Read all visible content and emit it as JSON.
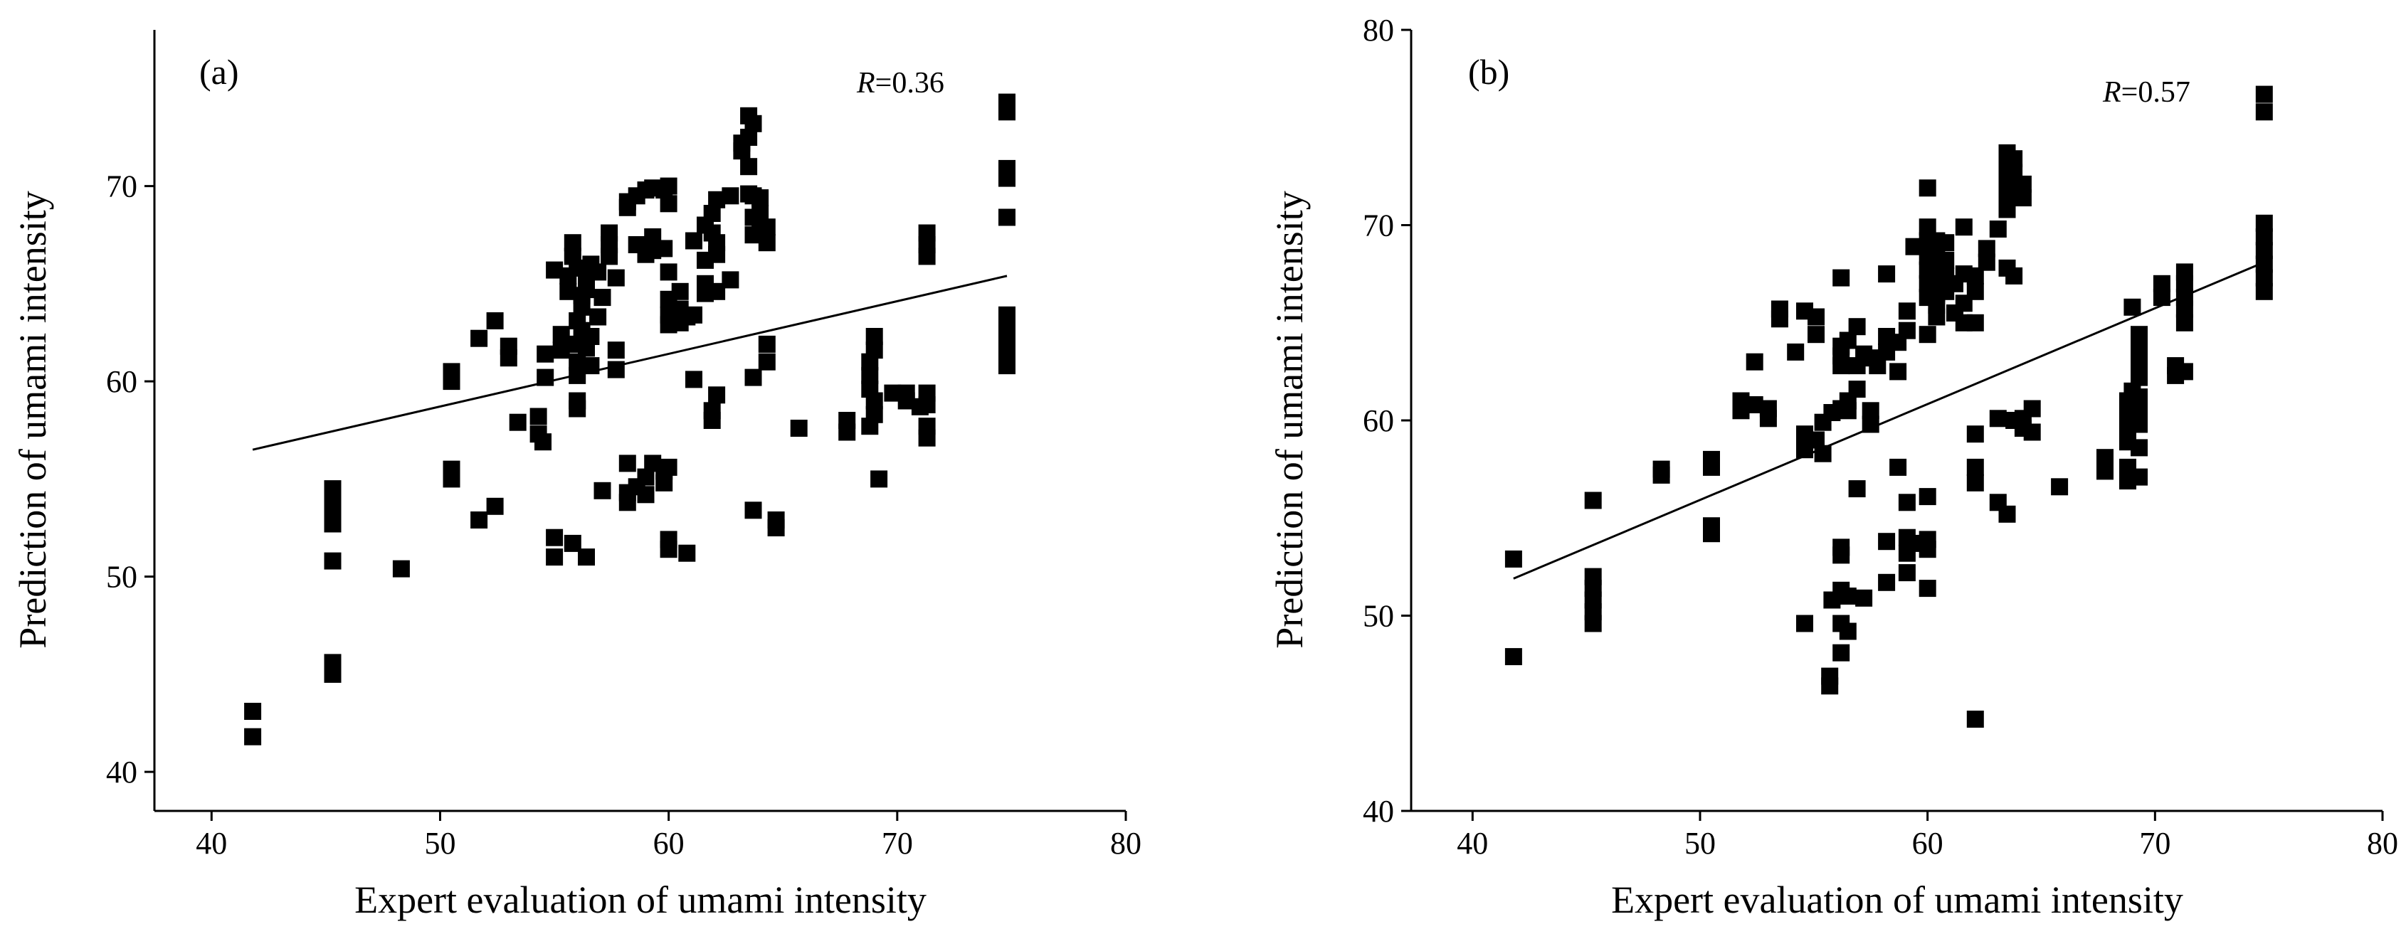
{
  "chart_data": [
    {
      "type": "scatter",
      "panel_label": "(a)",
      "annotation": {
        "symbol": "R",
        "text": "=0.36"
      },
      "xlabel": "Expert evaluation of umami intensity",
      "ylabel": "Prediction of umami intensity",
      "xlim": [
        37.5,
        80
      ],
      "ylim": [
        38,
        78
      ],
      "xticks": [
        40,
        50,
        60,
        70,
        80
      ],
      "yticks": [
        40,
        50,
        60,
        70
      ],
      "fit_line": {
        "x": [
          41.8,
          74.8
        ],
        "y": [
          56.5,
          65.4
        ]
      },
      "points": [
        [
          41.8,
          43.1
        ],
        [
          41.8,
          41.8
        ],
        [
          45.3,
          54.5
        ],
        [
          45.3,
          53.9
        ],
        [
          45.3,
          53.3
        ],
        [
          45.3,
          52.7
        ],
        [
          45.3,
          50.8
        ],
        [
          45.3,
          45.6
        ],
        [
          45.3,
          45.0
        ],
        [
          48.3,
          50.4
        ],
        [
          50.5,
          60.5
        ],
        [
          50.5,
          60.0
        ],
        [
          50.5,
          55.5
        ],
        [
          50.5,
          55.0
        ],
        [
          51.7,
          62.2
        ],
        [
          51.7,
          52.9
        ],
        [
          52.4,
          63.1
        ],
        [
          52.4,
          53.6
        ],
        [
          53.0,
          61.8
        ],
        [
          53.0,
          61.2
        ],
        [
          53.4,
          57.9
        ],
        [
          54.3,
          58.2
        ],
        [
          54.3,
          57.3
        ],
        [
          54.5,
          56.9
        ],
        [
          54.6,
          61.4
        ],
        [
          54.6,
          60.2
        ],
        [
          55.0,
          65.7
        ],
        [
          55.0,
          52.0
        ],
        [
          55.0,
          51.0
        ],
        [
          55.3,
          62.4
        ],
        [
          55.3,
          61.6
        ],
        [
          55.6,
          65.4
        ],
        [
          55.6,
          64.6
        ],
        [
          55.8,
          67.1
        ],
        [
          55.8,
          66.4
        ],
        [
          55.8,
          51.7
        ],
        [
          56.0,
          65.8
        ],
        [
          56.0,
          63.1
        ],
        [
          56.0,
          61.9
        ],
        [
          56.0,
          61.0
        ],
        [
          56.0,
          60.3
        ],
        [
          56.0,
          59.0
        ],
        [
          56.0,
          58.6
        ],
        [
          56.2,
          64.4
        ],
        [
          56.2,
          63.8
        ],
        [
          56.2,
          62.6
        ],
        [
          56.4,
          65.4
        ],
        [
          56.4,
          64.7
        ],
        [
          56.4,
          61.7
        ],
        [
          56.4,
          51.0
        ],
        [
          56.6,
          66.0
        ],
        [
          56.6,
          62.3
        ],
        [
          56.6,
          60.8
        ],
        [
          56.9,
          65.6
        ],
        [
          56.9,
          63.3
        ],
        [
          57.1,
          64.3
        ],
        [
          57.1,
          54.4
        ],
        [
          57.4,
          67.6
        ],
        [
          57.4,
          67.0
        ],
        [
          57.4,
          66.4
        ],
        [
          57.7,
          65.3
        ],
        [
          57.7,
          61.6
        ],
        [
          57.7,
          60.6
        ],
        [
          58.2,
          69.2
        ],
        [
          58.2,
          68.9
        ],
        [
          58.2,
          55.8
        ],
        [
          58.2,
          54.3
        ],
        [
          58.2,
          53.8
        ],
        [
          58.6,
          69.5
        ],
        [
          58.6,
          67.0
        ],
        [
          58.6,
          54.6
        ],
        [
          59.0,
          69.8
        ],
        [
          59.0,
          66.5
        ],
        [
          59.0,
          55.1
        ],
        [
          59.0,
          54.2
        ],
        [
          59.3,
          69.9
        ],
        [
          59.3,
          67.4
        ],
        [
          59.3,
          66.7
        ],
        [
          59.3,
          55.8
        ],
        [
          59.8,
          69.8
        ],
        [
          59.8,
          66.8
        ],
        [
          59.8,
          55.4
        ],
        [
          59.8,
          54.8
        ],
        [
          60.0,
          70.0
        ],
        [
          60.0,
          69.1
        ],
        [
          60.0,
          65.6
        ],
        [
          60.0,
          64.2
        ],
        [
          60.0,
          63.4
        ],
        [
          60.0,
          62.9
        ],
        [
          60.0,
          55.6
        ],
        [
          60.0,
          51.9
        ],
        [
          60.0,
          51.4
        ],
        [
          60.5,
          64.6
        ],
        [
          60.5,
          63.7
        ],
        [
          60.5,
          63.0
        ],
        [
          60.8,
          63.3
        ],
        [
          60.8,
          51.2
        ],
        [
          61.1,
          67.2
        ],
        [
          61.1,
          63.4
        ],
        [
          61.1,
          60.1
        ],
        [
          61.6,
          68.0
        ],
        [
          61.6,
          66.2
        ],
        [
          61.6,
          65.0
        ],
        [
          61.6,
          64.5
        ],
        [
          61.9,
          68.6
        ],
        [
          61.9,
          67.6
        ],
        [
          61.9,
          58.5
        ],
        [
          61.9,
          58.0
        ],
        [
          62.1,
          69.3
        ],
        [
          62.1,
          67.1
        ],
        [
          62.1,
          66.5
        ],
        [
          62.1,
          64.6
        ],
        [
          62.1,
          59.3
        ],
        [
          62.7,
          69.5
        ],
        [
          62.7,
          65.2
        ],
        [
          63.2,
          72.2
        ],
        [
          63.2,
          71.8
        ],
        [
          63.5,
          73.6
        ],
        [
          63.5,
          72.5
        ],
        [
          63.5,
          71.0
        ],
        [
          63.5,
          69.6
        ],
        [
          63.7,
          73.2
        ],
        [
          63.7,
          69.5
        ],
        [
          63.7,
          68.4
        ],
        [
          63.7,
          67.5
        ],
        [
          63.7,
          60.2
        ],
        [
          63.7,
          53.4
        ],
        [
          64.0,
          68.6
        ],
        [
          64.0,
          67.6
        ],
        [
          64.0,
          69.4
        ],
        [
          64.3,
          67.9
        ],
        [
          64.3,
          67.1
        ],
        [
          64.3,
          61.9
        ],
        [
          64.3,
          61.0
        ],
        [
          64.7,
          52.9
        ],
        [
          64.7,
          52.5
        ],
        [
          65.7,
          57.6
        ],
        [
          67.8,
          58.0
        ],
        [
          67.8,
          57.4
        ],
        [
          68.8,
          61.0
        ],
        [
          68.8,
          60.3
        ],
        [
          68.8,
          59.6
        ],
        [
          68.8,
          57.7
        ],
        [
          69.0,
          62.3
        ],
        [
          69.0,
          61.6
        ],
        [
          69.0,
          59.0
        ],
        [
          69.0,
          58.3
        ],
        [
          69.2,
          55.0
        ],
        [
          69.8,
          59.4
        ],
        [
          70.4,
          59.4
        ],
        [
          70.4,
          59.0
        ],
        [
          71.0,
          58.7
        ],
        [
          71.3,
          67.6
        ],
        [
          71.3,
          67.0
        ],
        [
          71.3,
          66.4
        ],
        [
          71.3,
          59.4
        ],
        [
          71.3,
          58.8
        ],
        [
          71.3,
          57.7
        ],
        [
          71.3,
          57.1
        ],
        [
          74.8,
          74.3
        ],
        [
          74.8,
          73.8
        ],
        [
          74.8,
          70.9
        ],
        [
          74.8,
          70.4
        ],
        [
          74.8,
          68.4
        ],
        [
          74.8,
          63.4
        ],
        [
          74.8,
          62.7
        ],
        [
          74.8,
          62.1
        ],
        [
          74.8,
          61.4
        ],
        [
          74.8,
          60.8
        ]
      ]
    },
    {
      "type": "scatter",
      "panel_label": "(b)",
      "annotation": {
        "symbol": "R",
        "text": "=0.57"
      },
      "xlabel": "Expert evaluation of umami intensity",
      "ylabel": "Prediction of umami intensity",
      "xlim": [
        37.3,
        80
      ],
      "ylim": [
        40,
        80
      ],
      "xticks": [
        40,
        50,
        60,
        70,
        80
      ],
      "yticks": [
        40,
        50,
        60,
        70,
        80
      ],
      "fit_line": {
        "x": [
          41.8,
          74.8
        ],
        "y": [
          51.9,
          68.1
        ]
      },
      "points": [
        [
          41.8,
          52.9
        ],
        [
          41.8,
          47.9
        ],
        [
          45.3,
          55.9
        ],
        [
          45.3,
          52.0
        ],
        [
          45.3,
          51.4
        ],
        [
          45.3,
          50.8
        ],
        [
          45.3,
          50.2
        ],
        [
          45.3,
          49.6
        ],
        [
          48.3,
          57.5
        ],
        [
          48.3,
          57.2
        ],
        [
          50.5,
          58.0
        ],
        [
          50.5,
          57.6
        ],
        [
          50.5,
          54.6
        ],
        [
          50.5,
          54.2
        ],
        [
          51.8,
          61.0
        ],
        [
          51.8,
          60.5
        ],
        [
          52.4,
          63.0
        ],
        [
          52.4,
          60.8
        ],
        [
          53.0,
          60.6
        ],
        [
          53.0,
          60.1
        ],
        [
          53.5,
          65.7
        ],
        [
          53.5,
          65.2
        ],
        [
          54.2,
          63.5
        ],
        [
          54.6,
          65.6
        ],
        [
          54.6,
          59.3
        ],
        [
          54.6,
          58.5
        ],
        [
          54.6,
          49.6
        ],
        [
          55.1,
          65.3
        ],
        [
          55.1,
          64.4
        ],
        [
          55.1,
          59.0
        ],
        [
          55.4,
          59.9
        ],
        [
          55.4,
          58.3
        ],
        [
          55.7,
          46.9
        ],
        [
          55.7,
          46.4
        ],
        [
          55.8,
          60.4
        ],
        [
          55.8,
          50.8
        ],
        [
          56.2,
          67.3
        ],
        [
          56.2,
          63.8
        ],
        [
          56.2,
          63.3
        ],
        [
          56.2,
          62.8
        ],
        [
          56.2,
          60.6
        ],
        [
          56.2,
          53.5
        ],
        [
          56.2,
          53.1
        ],
        [
          56.2,
          51.3
        ],
        [
          56.2,
          49.6
        ],
        [
          56.2,
          48.1
        ],
        [
          56.5,
          64.1
        ],
        [
          56.5,
          61.0
        ],
        [
          56.5,
          60.5
        ],
        [
          56.5,
          51.0
        ],
        [
          56.5,
          49.2
        ],
        [
          56.9,
          64.8
        ],
        [
          56.9,
          62.8
        ],
        [
          56.9,
          61.6
        ],
        [
          56.9,
          56.5
        ],
        [
          57.2,
          63.4
        ],
        [
          57.2,
          50.9
        ],
        [
          57.5,
          63.2
        ],
        [
          57.5,
          60.5
        ],
        [
          57.5,
          59.8
        ],
        [
          57.8,
          62.8
        ],
        [
          58.2,
          67.5
        ],
        [
          58.2,
          64.3
        ],
        [
          58.2,
          63.5
        ],
        [
          58.2,
          53.8
        ],
        [
          58.2,
          51.7
        ],
        [
          58.7,
          64.0
        ],
        [
          58.7,
          62.5
        ],
        [
          58.7,
          57.6
        ],
        [
          59.1,
          65.6
        ],
        [
          59.1,
          64.6
        ],
        [
          59.1,
          55.8
        ],
        [
          59.1,
          54.0
        ],
        [
          59.1,
          53.2
        ],
        [
          59.1,
          52.2
        ],
        [
          59.4,
          68.9
        ],
        [
          59.4,
          53.7
        ],
        [
          60.0,
          71.9
        ],
        [
          60.0,
          69.9
        ],
        [
          60.0,
          69.2
        ],
        [
          60.0,
          68.4
        ],
        [
          60.0,
          67.7
        ],
        [
          60.0,
          67.0
        ],
        [
          60.0,
          66.3
        ],
        [
          60.0,
          64.4
        ],
        [
          60.0,
          56.1
        ],
        [
          60.0,
          53.9
        ],
        [
          60.0,
          53.4
        ],
        [
          60.0,
          51.4
        ],
        [
          60.4,
          69.2
        ],
        [
          60.4,
          68.5
        ],
        [
          60.4,
          67.8
        ],
        [
          60.4,
          67.2
        ],
        [
          60.4,
          66.5
        ],
        [
          60.4,
          65.9
        ],
        [
          60.4,
          65.3
        ],
        [
          60.8,
          69.1
        ],
        [
          60.8,
          68.2
        ],
        [
          60.8,
          67.4
        ],
        [
          60.8,
          66.6
        ],
        [
          61.2,
          67.0
        ],
        [
          61.2,
          65.5
        ],
        [
          61.6,
          69.9
        ],
        [
          61.6,
          67.5
        ],
        [
          61.6,
          66.0
        ],
        [
          61.6,
          65.0
        ],
        [
          62.1,
          67.4
        ],
        [
          62.1,
          66.6
        ],
        [
          62.1,
          65.0
        ],
        [
          62.1,
          59.3
        ],
        [
          62.1,
          57.6
        ],
        [
          62.1,
          56.8
        ],
        [
          62.1,
          44.7
        ],
        [
          62.6,
          68.8
        ],
        [
          62.6,
          68.1
        ],
        [
          63.1,
          69.8
        ],
        [
          63.1,
          60.1
        ],
        [
          63.1,
          55.8
        ],
        [
          63.5,
          73.7
        ],
        [
          63.5,
          73.1
        ],
        [
          63.5,
          72.6
        ],
        [
          63.5,
          72.0
        ],
        [
          63.5,
          71.4
        ],
        [
          63.5,
          70.8
        ],
        [
          63.5,
          67.8
        ],
        [
          63.5,
          55.2
        ],
        [
          63.8,
          73.4
        ],
        [
          63.8,
          72.7
        ],
        [
          63.8,
          71.9
        ],
        [
          63.8,
          67.4
        ],
        [
          63.8,
          60.0
        ],
        [
          64.2,
          72.1
        ],
        [
          64.2,
          71.4
        ],
        [
          64.2,
          60.1
        ],
        [
          64.2,
          59.6
        ],
        [
          64.6,
          60.6
        ],
        [
          64.6,
          59.4
        ],
        [
          65.8,
          56.6
        ],
        [
          67.8,
          58.1
        ],
        [
          67.8,
          57.4
        ],
        [
          68.8,
          61.0
        ],
        [
          68.8,
          60.3
        ],
        [
          68.8,
          59.6
        ],
        [
          68.8,
          58.9
        ],
        [
          68.8,
          57.6
        ],
        [
          68.8,
          56.9
        ],
        [
          69.0,
          65.8
        ],
        [
          69.0,
          61.5
        ],
        [
          69.3,
          64.4
        ],
        [
          69.3,
          63.6
        ],
        [
          69.3,
          62.9
        ],
        [
          69.3,
          62.2
        ],
        [
          69.3,
          61.2
        ],
        [
          69.3,
          60.5
        ],
        [
          69.3,
          59.8
        ],
        [
          69.3,
          58.6
        ],
        [
          69.3,
          57.1
        ],
        [
          70.3,
          67.0
        ],
        [
          70.3,
          66.3
        ],
        [
          70.9,
          62.8
        ],
        [
          70.9,
          62.3
        ],
        [
          71.3,
          67.6
        ],
        [
          71.3,
          67.0
        ],
        [
          71.3,
          66.3
        ],
        [
          71.3,
          65.7
        ],
        [
          71.3,
          65.0
        ],
        [
          71.3,
          62.5
        ],
        [
          74.8,
          76.7
        ],
        [
          74.8,
          75.8
        ],
        [
          74.8,
          70.1
        ],
        [
          74.8,
          69.4
        ],
        [
          74.8,
          68.7
        ],
        [
          74.8,
          68.0
        ],
        [
          74.8,
          67.3
        ],
        [
          74.8,
          66.6
        ]
      ]
    }
  ]
}
